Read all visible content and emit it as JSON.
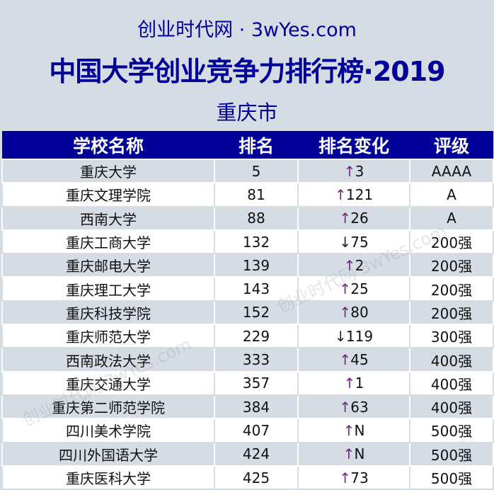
{
  "header": {
    "site": "创业时代网 · 3wYes.com",
    "title": "中国大学创业竞争力排行榜·2019",
    "city": "重庆市"
  },
  "columns": [
    "学校名称",
    "排名",
    "排名变化",
    "评级"
  ],
  "rows": [
    {
      "name": "重庆大学",
      "rank": "5",
      "dir": "up",
      "change": "3",
      "grade": "AAAA"
    },
    {
      "name": "重庆文理学院",
      "rank": "81",
      "dir": "up",
      "change": "121",
      "grade": "A"
    },
    {
      "name": "西南大学",
      "rank": "88",
      "dir": "up",
      "change": "26",
      "grade": "A"
    },
    {
      "name": "重庆工商大学",
      "rank": "132",
      "dir": "down",
      "change": "75",
      "grade": "200强"
    },
    {
      "name": "重庆邮电大学",
      "rank": "139",
      "dir": "up",
      "change": "2",
      "grade": "200强"
    },
    {
      "name": "重庆理工大学",
      "rank": "143",
      "dir": "up",
      "change": "25",
      "grade": "200强"
    },
    {
      "name": "重庆科技学院",
      "rank": "152",
      "dir": "up",
      "change": "80",
      "grade": "200强"
    },
    {
      "name": "重庆师范大学",
      "rank": "229",
      "dir": "down",
      "change": "119",
      "grade": "300强"
    },
    {
      "name": "西南政法大学",
      "rank": "333",
      "dir": "up",
      "change": "45",
      "grade": "400强"
    },
    {
      "name": "重庆交通大学",
      "rank": "357",
      "dir": "up",
      "change": "1",
      "grade": "400强"
    },
    {
      "name": "重庆第二师范学院",
      "rank": "384",
      "dir": "up",
      "change": "63",
      "grade": "400强"
    },
    {
      "name": "四川美术学院",
      "rank": "407",
      "dir": "up",
      "change": "N",
      "grade": "500强"
    },
    {
      "name": "四川外国语大学",
      "rank": "424",
      "dir": "up",
      "change": "N",
      "grade": "500强"
    },
    {
      "name": "重庆医科大学",
      "rank": "425",
      "dir": "up",
      "change": "73",
      "grade": "500强"
    }
  ],
  "watermark": "创业时代网 3wYes.com"
}
